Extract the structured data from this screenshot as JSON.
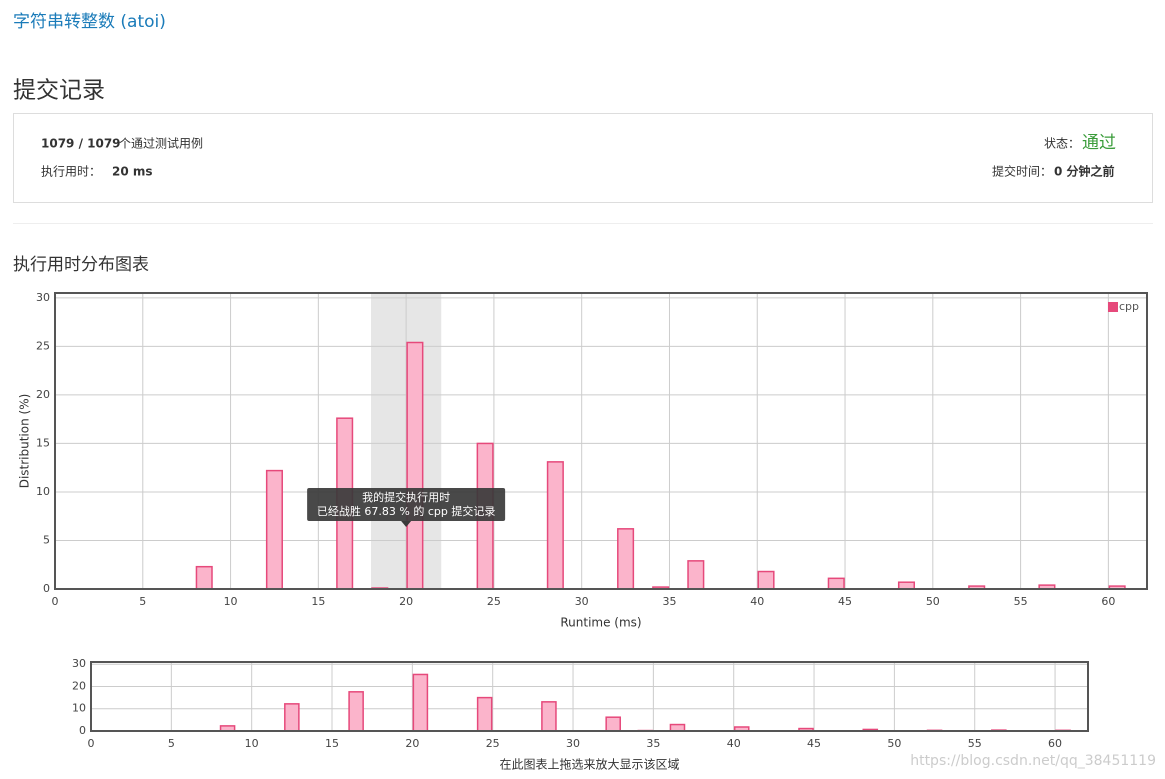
{
  "header": {
    "problem_link": "字符串转整数 (atoi)",
    "title": "提交记录"
  },
  "summary": {
    "passed": "1079 / 1079",
    "passed_suffix": "个通过测试用例",
    "runtime_label": "执行用时：",
    "runtime": "20 ms",
    "status_label": "状态：",
    "status": "通过",
    "time_label": "提交时间：",
    "time": "0 分钟之前"
  },
  "section_title": "执行用时分布图表",
  "chart_data": [
    {
      "type": "bar",
      "x": [
        8,
        12,
        16,
        18,
        20,
        24,
        28,
        32,
        34,
        36,
        40,
        44,
        48,
        52,
        56,
        60
      ],
      "series": [
        {
          "name": "cpp",
          "color": "#fbb4cb",
          "edge_color": "#e6497b",
          "values": [
            2.3,
            12.2,
            17.6,
            0.1,
            25.4,
            15.0,
            13.1,
            6.2,
            0.2,
            2.9,
            1.8,
            1.1,
            0.7,
            0.3,
            0.4,
            0.3
          ]
        }
      ],
      "xlim": [
        0,
        62.2
      ],
      "xticks": [
        0,
        5,
        10,
        15,
        20,
        25,
        30,
        35,
        40,
        45,
        50,
        55,
        60
      ],
      "ylim": [
        0,
        30.5
      ],
      "yticks": [
        0,
        5,
        10,
        15,
        20,
        25,
        30
      ],
      "xlabel": "Runtime (ms)",
      "ylabel": "Distribution (%)",
      "grid": true,
      "legend": "top-right",
      "highlight": [
        18,
        22
      ],
      "tooltip": [
        "我的提交执行用时",
        "已经战胜 67.83 % 的 cpp 提交记录"
      ]
    },
    {
      "type": "bar",
      "x": [
        8,
        12,
        16,
        18,
        20,
        24,
        28,
        32,
        34,
        36,
        40,
        44,
        48,
        52,
        56,
        60
      ],
      "series": [
        {
          "name": "cpp",
          "color": "#fbb4cb",
          "edge_color": "#e6497b",
          "values": [
            2.3,
            12.2,
            17.6,
            0.1,
            25.4,
            15.0,
            13.1,
            6.2,
            0.2,
            2.9,
            1.8,
            1.1,
            0.7,
            0.3,
            0.4,
            0.3
          ]
        }
      ],
      "xlim": [
        0,
        62.05
      ],
      "xticks": [
        0,
        5,
        10,
        15,
        20,
        25,
        30,
        35,
        40,
        45,
        50,
        55,
        60
      ],
      "ylim": [
        0,
        31
      ],
      "yticks": [
        0,
        10,
        20,
        30
      ],
      "grid": true,
      "caption": "在此图表上拖选来放大显示该区域"
    }
  ],
  "watermark": "https://blog.csdn.net/qq_38451119"
}
